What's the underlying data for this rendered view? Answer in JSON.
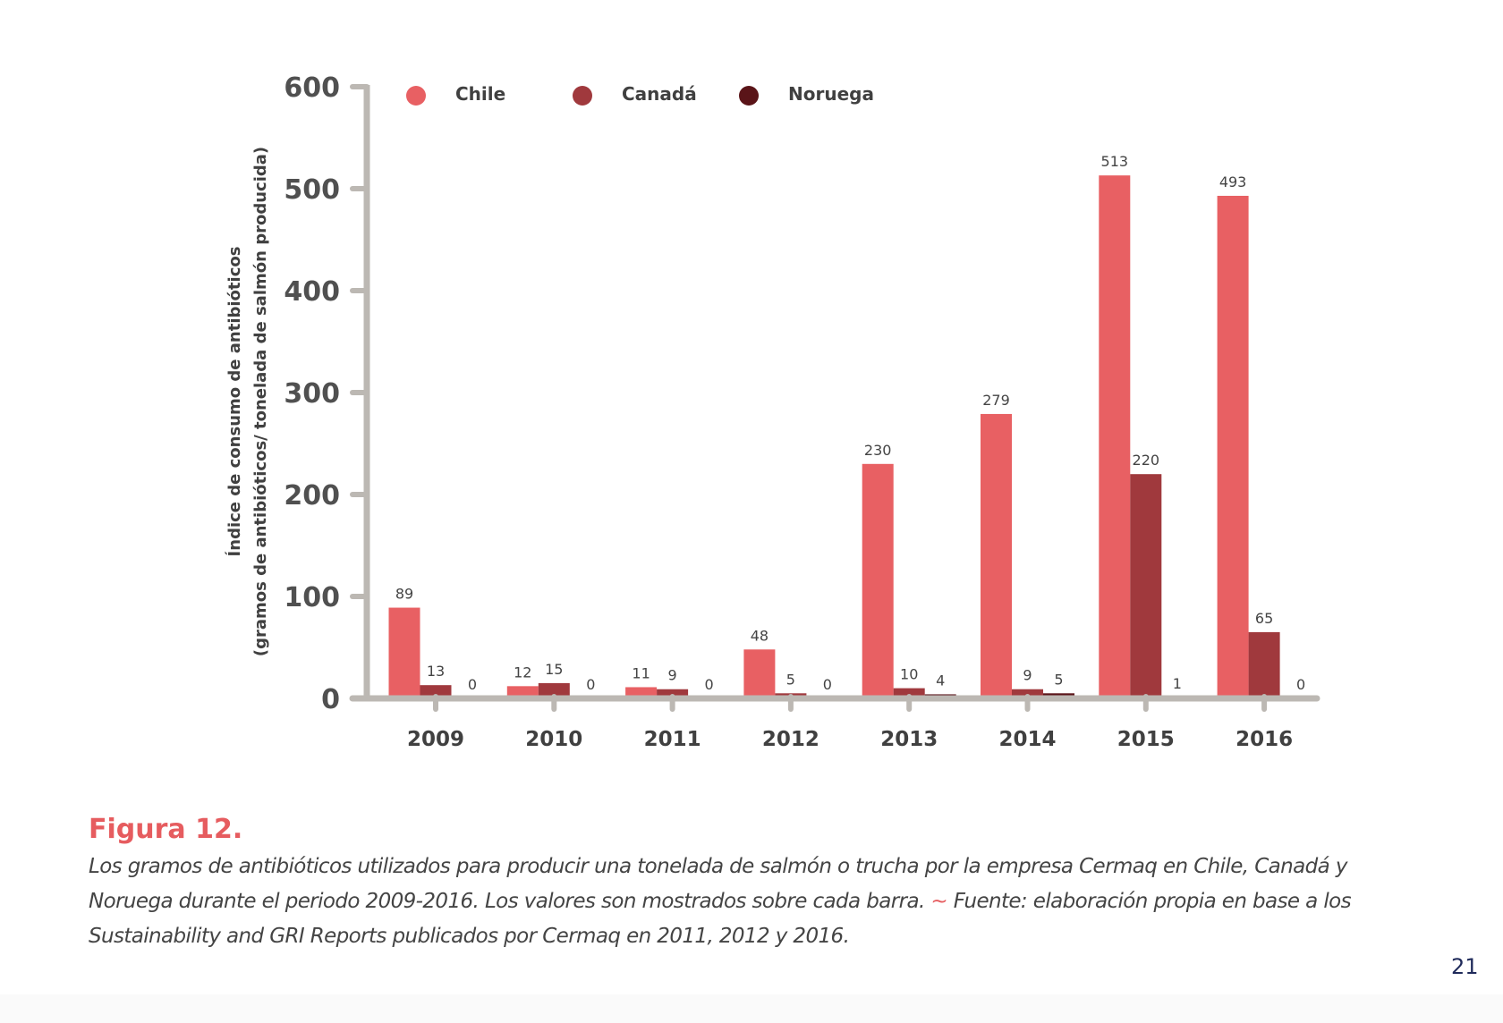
{
  "chart_data": {
    "type": "bar",
    "title": "",
    "ylabel_lines": [
      "Índice de consumo de antibióticos",
      "(gramos de antibióticos/ tonelada de salmón producida)"
    ],
    "xlabel": "",
    "categories": [
      "2009",
      "2010",
      "2011",
      "2012",
      "2013",
      "2014",
      "2015",
      "2016"
    ],
    "series": [
      {
        "name": "Chile",
        "color": "#e86063",
        "values": [
          89,
          12,
          11,
          48,
          230,
          279,
          513,
          493
        ]
      },
      {
        "name": "Canadá",
        "color": "#a0393d",
        "values": [
          13,
          15,
          9,
          5,
          10,
          9,
          220,
          65
        ]
      },
      {
        "name": "Noruega",
        "color": "#5a1418",
        "values": [
          0,
          0,
          0,
          0,
          4,
          5,
          1,
          0
        ]
      }
    ],
    "ylim": [
      0,
      600
    ],
    "yticks": [
      0,
      100,
      200,
      300,
      400,
      500,
      600
    ],
    "grid": false,
    "legend_position": "top",
    "axis_color": "#bcb8b3",
    "data_labels": true
  },
  "caption": {
    "figure_label": "Figura 12.",
    "text_part1": "Los gramos de antibióticos utilizados para producir una tonelada de salmón o trucha por la empresa Cermaq en Chile, Canadá y Noruega durante el periodo 2009-2016. Los valores son mostrados sobre cada barra.",
    "separator": "~",
    "text_part2": "Fuente: elaboración propia en base a los Sustainability and GRI Reports publicados por Cermaq en 2011, 2012 y 2016."
  },
  "page_number": "21"
}
